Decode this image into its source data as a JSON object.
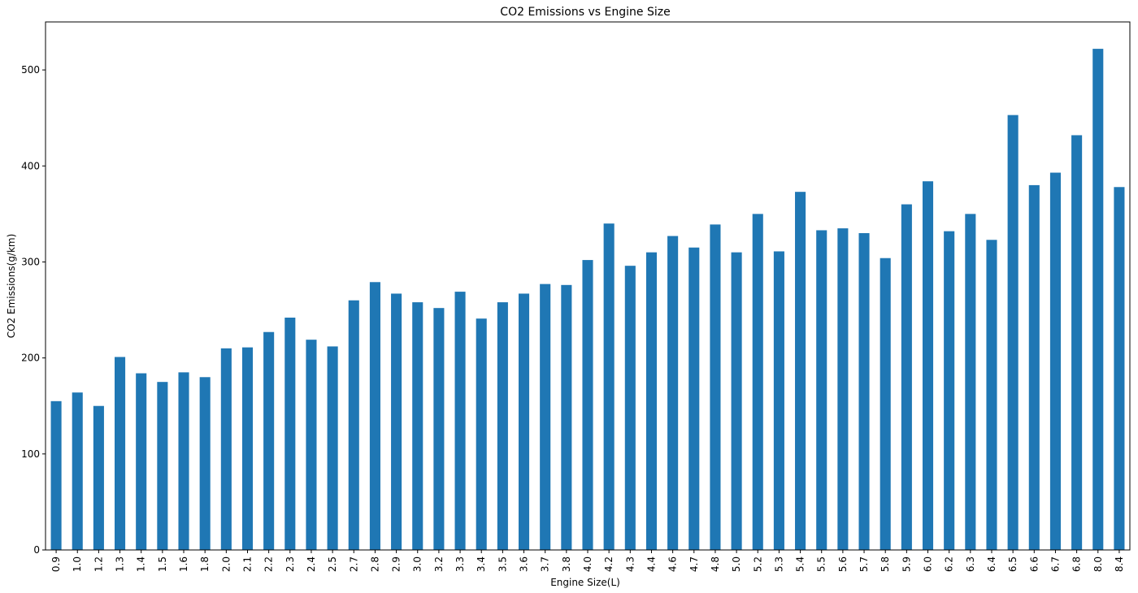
{
  "chart_data": {
    "type": "bar",
    "title": "CO2 Emissions vs Engine Size",
    "xlabel": "Engine Size(L)",
    "ylabel": "CO2 Emissions(g/km)",
    "ylim": [
      0,
      550
    ],
    "yticks": [
      0,
      100,
      200,
      300,
      400,
      500
    ],
    "grid": false,
    "legend": "none",
    "bar_color": "#1f77b4",
    "categories": [
      "0.9",
      "1.0",
      "1.2",
      "1.3",
      "1.4",
      "1.5",
      "1.6",
      "1.8",
      "2.0",
      "2.1",
      "2.2",
      "2.3",
      "2.4",
      "2.5",
      "2.7",
      "2.8",
      "2.9",
      "3.0",
      "3.2",
      "3.3",
      "3.4",
      "3.5",
      "3.6",
      "3.7",
      "3.8",
      "4.0",
      "4.2",
      "4.3",
      "4.4",
      "4.6",
      "4.7",
      "4.8",
      "5.0",
      "5.2",
      "5.3",
      "5.4",
      "5.5",
      "5.6",
      "5.7",
      "5.8",
      "5.9",
      "6.0",
      "6.2",
      "6.3",
      "6.4",
      "6.5",
      "6.6",
      "6.7",
      "6.8",
      "8.0",
      "8.4"
    ],
    "values": [
      155,
      164,
      150,
      201,
      184,
      175,
      185,
      180,
      210,
      211,
      227,
      242,
      219,
      212,
      260,
      279,
      267,
      258,
      252,
      269,
      241,
      258,
      267,
      277,
      276,
      302,
      340,
      296,
      310,
      327,
      315,
      339,
      310,
      350,
      311,
      373,
      333,
      335,
      330,
      304,
      360,
      384,
      332,
      350,
      323,
      453,
      380,
      393,
      432,
      522,
      378
    ]
  }
}
